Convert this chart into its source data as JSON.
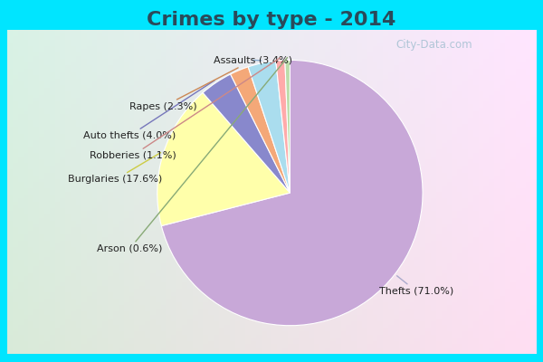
{
  "title": "Crimes by type - 2014",
  "title_fontsize": 16,
  "title_fontweight": "bold",
  "title_color": "#2a4a5a",
  "slices": [
    {
      "label": "Thefts (71.0%)",
      "value": 71.0,
      "color": "#C8A8D8"
    },
    {
      "label": "Burglaries (17.6%)",
      "value": 17.6,
      "color": "#FFFFAA"
    },
    {
      "label": "Auto thefts (4.0%)",
      "value": 4.0,
      "color": "#8888CC"
    },
    {
      "label": "Rapes (2.3%)",
      "value": 2.3,
      "color": "#F4A878"
    },
    {
      "label": "Assaults (3.4%)",
      "value": 3.4,
      "color": "#AADDEE"
    },
    {
      "label": "Robberies (1.1%)",
      "value": 1.1,
      "color": "#FFAAAA"
    },
    {
      "label": "Arson (0.6%)",
      "value": 0.6,
      "color": "#BBDDAA"
    }
  ],
  "border_color": "#00E5FF",
  "border_width": 8,
  "watermark": "City-Data.com",
  "startangle": 90,
  "label_fontsize": 8,
  "label_color": "#222222"
}
